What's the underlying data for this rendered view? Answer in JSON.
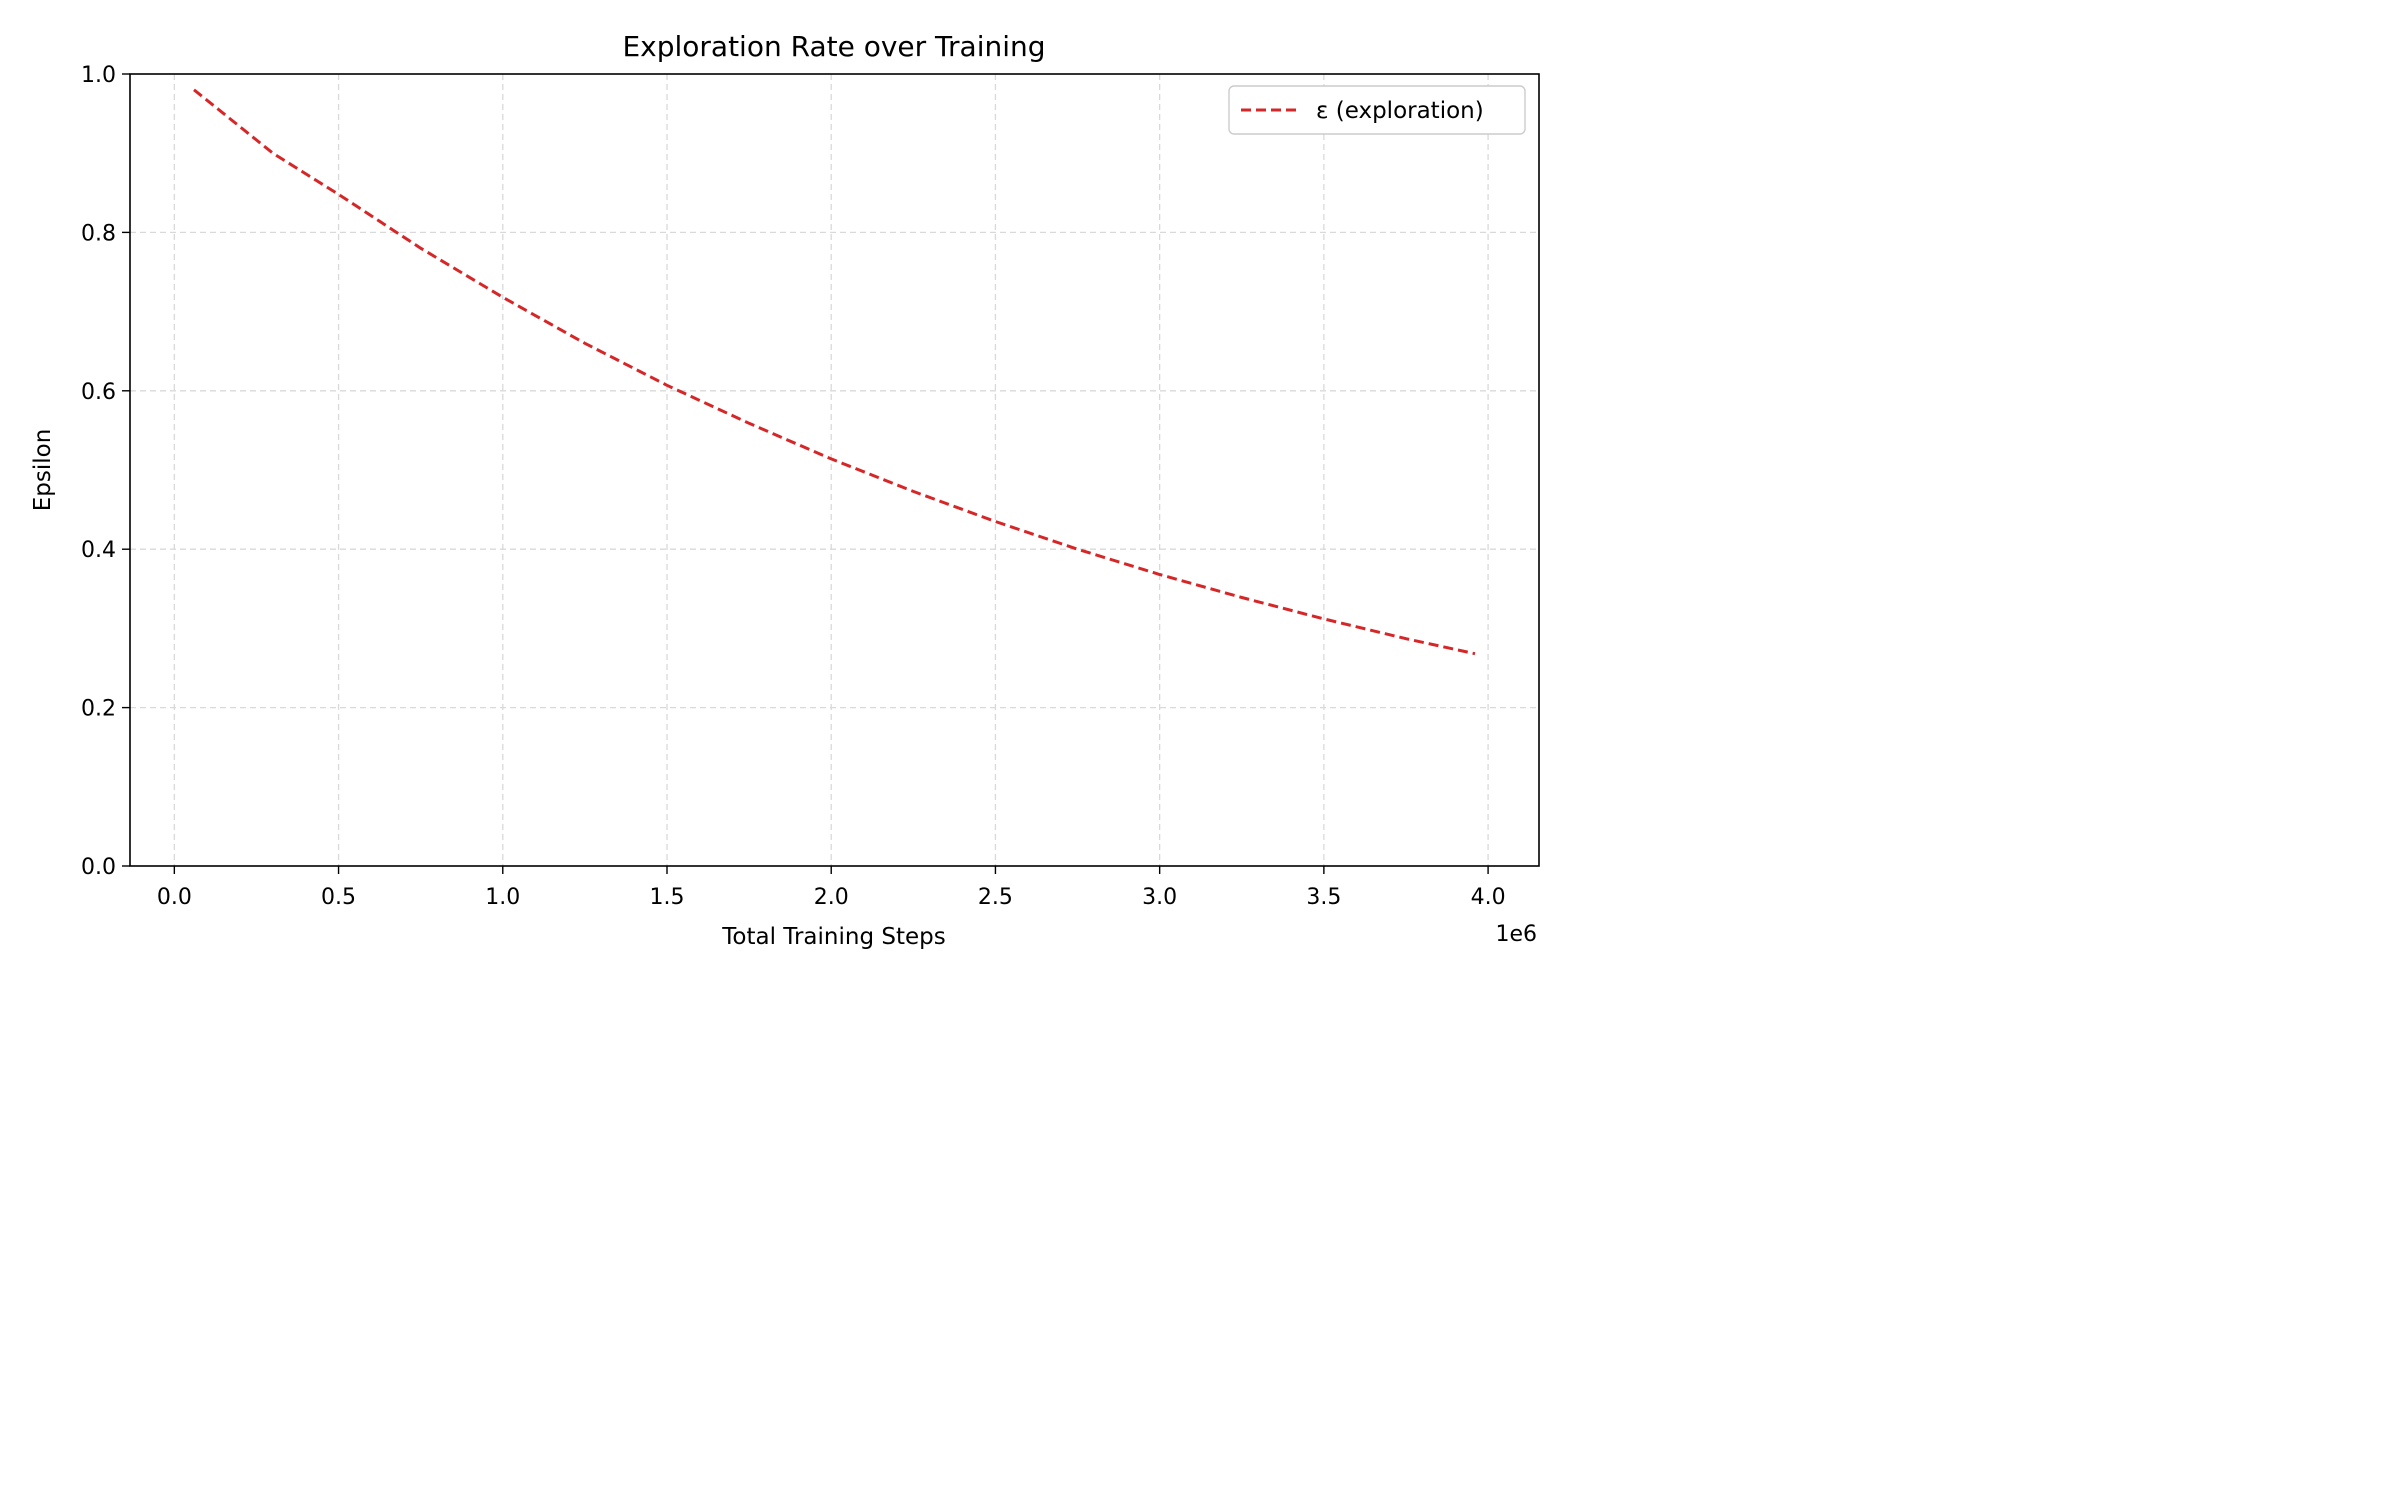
{
  "chart_data": {
    "type": "line",
    "title": "Exploration Rate over Training",
    "xlabel": "Total Training Steps",
    "ylabel": "Epsilon",
    "ylabel_color": "#d62728",
    "x_scale_label": "1e6",
    "xlim": [
      -0.135,
      4.155
    ],
    "ylim": [
      0.0,
      1.0
    ],
    "x_ticks": [
      0.0,
      0.5,
      1.0,
      1.5,
      2.0,
      2.5,
      3.0,
      3.5,
      4.0
    ],
    "x_tick_labels": [
      "0.0",
      "0.5",
      "1.0",
      "1.5",
      "2.0",
      "2.5",
      "3.0",
      "3.5",
      "4.0"
    ],
    "y_ticks": [
      0.0,
      0.2,
      0.4,
      0.6,
      0.8,
      1.0
    ],
    "y_tick_labels": [
      "0.0",
      "0.2",
      "0.4",
      "0.6",
      "0.8",
      "1.0"
    ],
    "grid": true,
    "legend_position": "upper-right",
    "series": [
      {
        "name": "ε (exploration)",
        "color": "#d62728",
        "line_style": "dashed",
        "x": [
          0.06,
          0.3,
          0.5,
          0.75,
          1.0,
          1.25,
          1.5,
          1.75,
          2.0,
          2.25,
          2.5,
          2.75,
          3.0,
          3.25,
          3.5,
          3.75,
          3.96
        ],
        "y": [
          0.98,
          0.9,
          0.848,
          0.78,
          0.718,
          0.66,
          0.607,
          0.559,
          0.514,
          0.473,
          0.435,
          0.4,
          0.368,
          0.339,
          0.312,
          0.287,
          0.268
        ]
      }
    ]
  }
}
